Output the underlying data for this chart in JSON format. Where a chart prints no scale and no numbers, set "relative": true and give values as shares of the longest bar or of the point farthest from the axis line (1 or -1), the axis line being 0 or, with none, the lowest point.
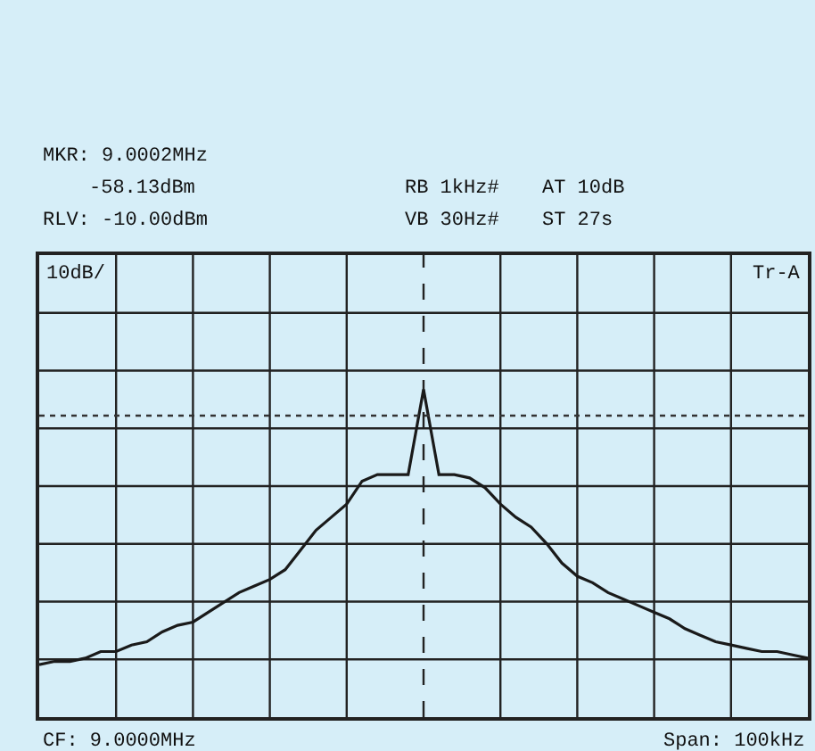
{
  "chart_data": {
    "type": "line",
    "relative": true,
    "grid": true,
    "marker": "none",
    "line_style": "solid",
    "categories": [
      null,
      null,
      null,
      null,
      null,
      null,
      null,
      null,
      null,
      null,
      null,
      null,
      null,
      null,
      null,
      null,
      null,
      null,
      null,
      null,
      null,
      null,
      null,
      null,
      null,
      null,
      null,
      null,
      null,
      null,
      null,
      null,
      null,
      null,
      null,
      null,
      null,
      null,
      null,
      null,
      null,
      null,
      null,
      null,
      null,
      null,
      null,
      null,
      null,
      null,
      null
    ],
    "series": [
      {
        "color": "#1a1a1a",
        "values": [
          0.16,
          0.17,
          0.17,
          0.18,
          0.2,
          0.2,
          0.22,
          0.23,
          0.26,
          0.28,
          0.29,
          0.32,
          0.35,
          0.38,
          0.4,
          0.42,
          0.45,
          0.51,
          0.57,
          0.61,
          0.65,
          0.72,
          0.74,
          0.74,
          0.74,
          1.0,
          0.74,
          0.74,
          0.73,
          0.7,
          0.65,
          0.61,
          0.58,
          0.53,
          0.47,
          0.43,
          0.41,
          0.38,
          0.36,
          0.34,
          0.32,
          0.3,
          0.27,
          0.25,
          0.23,
          0.22,
          0.21,
          0.2,
          0.2,
          0.19,
          0.18
        ]
      }
    ],
    "ref_lines": [
      {
        "axis": "y",
        "value": 0.92,
        "label": null,
        "color": "#333333",
        "line_style": "dotted"
      }
    ],
    "annotations": [
      "MKR: 9.0002MHz",
      "-58.13dBm",
      "RB 1kHz#",
      "AT 10dB",
      "RLV: -10.00dBm",
      "VB 30Hz#",
      "ST 27s",
      "10dB/",
      "Tr-A",
      "CF: 9.0000MHz",
      "Span: 100kHz"
    ]
  }
}
